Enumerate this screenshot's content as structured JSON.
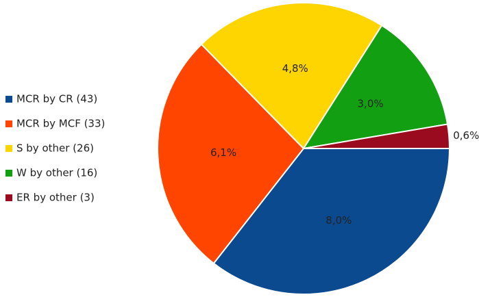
{
  "chart_data": {
    "type": "pie",
    "categories": [
      "MCR by CR (43)",
      "MCR by MCF (33)",
      "S by other (26)",
      "W by other (16)",
      "ER by other (3)"
    ],
    "values": [
      8.0,
      6.1,
      4.8,
      3.0,
      0.6
    ],
    "value_labels": [
      "8,0%",
      "6,1%",
      "4,8%",
      "3,0%",
      "0,6%"
    ],
    "colors": [
      "#0b4a8e",
      "#ff4500",
      "#ffd500",
      "#12a012",
      "#9a0b1f"
    ],
    "legend": "left"
  }
}
